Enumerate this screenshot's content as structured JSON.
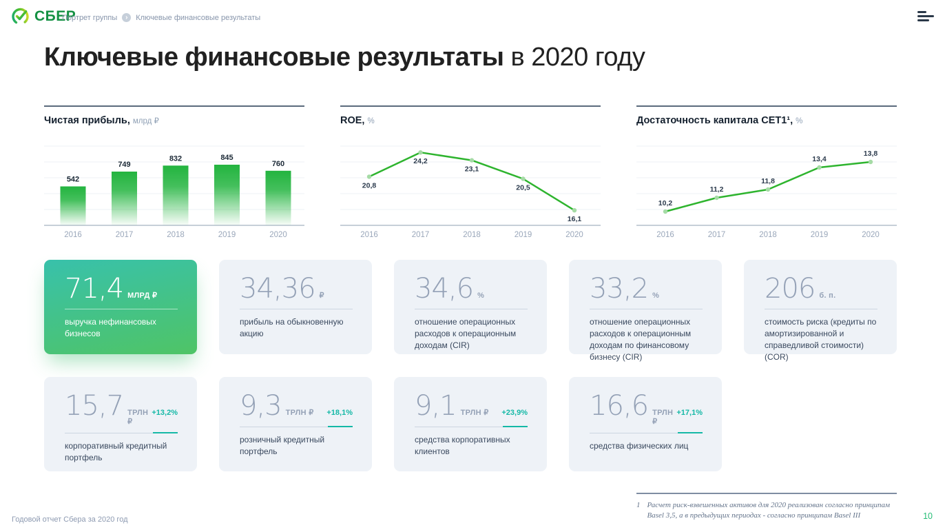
{
  "header": {
    "logo_text": "СБЕР",
    "breadcrumb": [
      "Портрет группы",
      "Ключевые финансовые результаты"
    ]
  },
  "title": {
    "bold": "Ключевые финансовые результаты",
    "regular": " в 2020 году"
  },
  "chart_data": [
    {
      "type": "bar",
      "title": "Чистая прибыль,",
      "unit": "млрд ₽",
      "categories": [
        "2016",
        "2017",
        "2018",
        "2019",
        "2020"
      ],
      "values": [
        542,
        749,
        832,
        845,
        760
      ],
      "value_labels": [
        "542",
        "749",
        "832",
        "845",
        "760"
      ],
      "ylim": [
        0,
        1056
      ],
      "grid": true,
      "legend": "none"
    },
    {
      "type": "line",
      "title": "ROE,",
      "unit": "%",
      "categories": [
        "2016",
        "2017",
        "2018",
        "2019",
        "2020"
      ],
      "values": [
        20.8,
        24.2,
        23.1,
        20.5,
        16.1
      ],
      "value_labels": [
        "20,8",
        "24,2",
        "23,1",
        "20,5",
        "16,1"
      ],
      "ylim": [
        14,
        24.6
      ],
      "label_position": "below",
      "grid": true,
      "legend": "none"
    },
    {
      "type": "line",
      "title": "Достаточность капитала CET1¹,",
      "unit": "%",
      "categories": [
        "2016",
        "2017",
        "2018",
        "2019",
        "2020"
      ],
      "values": [
        10.2,
        11.2,
        11.8,
        13.4,
        13.8
      ],
      "value_labels": [
        "10,2",
        "11,2",
        "11,8",
        "13,4",
        "13,8"
      ],
      "ylim": [
        9.2,
        14.7
      ],
      "label_position": "above",
      "grid": true,
      "legend": "none"
    }
  ],
  "cards_row1": [
    {
      "value": "71,4",
      "unit": "МЛРД ₽",
      "label": "выручка нефинансовых бизнесов"
    },
    {
      "value": "34,36",
      "unit": "₽",
      "label": "прибыль на обыкновенную акцию"
    },
    {
      "value": "34,6",
      "unit": "%",
      "label": "отношение операционных расходов к операционным доходам (CIR)"
    },
    {
      "value": "33,2",
      "unit": "%",
      "label": "отношение операционных расходов к операционным доходам по финансовому бизнесу (CIR)"
    },
    {
      "value": "206",
      "unit": "б. п.",
      "label": "стоимость риска  (кредиты по амортизированной и справедливой стоимости) (COR)"
    }
  ],
  "cards_row2": [
    {
      "value": "15,7",
      "unit": "ТРЛН ₽",
      "delta": "+13,2%",
      "label": "корпоративный кредитный портфель"
    },
    {
      "value": "9,3",
      "unit": "ТРЛН ₽",
      "delta": "+18,1%",
      "label": "розничный кредитный портфель"
    },
    {
      "value": "9,1",
      "unit": "ТРЛН ₽",
      "delta": "+23,9%",
      "label": "средства корпоративных клиентов"
    },
    {
      "value": "16,6",
      "unit": "ТРЛН ₽",
      "delta": "+17,1%",
      "label": "средства  физических лиц"
    }
  ],
  "footnote": {
    "number": "1",
    "text": "Расчет риск-взвешенных активов для 2020 реализован согласно принципам Basel 3,5, а в предыдущих периодах - согласно принципам Basel III"
  },
  "footer": {
    "left": "Годовой отчет Сбера за 2020 год",
    "page": "10"
  },
  "colors": {
    "brand_green": "#21a038",
    "chart_line_green": "#2eb42e",
    "bar_gradient_top": "#23b43f",
    "teal_accent": "#14b8a6",
    "card_background": "#eef2f7",
    "featured_gradient": [
      "#38c1ab",
      "#4fc466"
    ],
    "page_number_green": "#27bd77",
    "number_gray": "#94a1b6"
  }
}
